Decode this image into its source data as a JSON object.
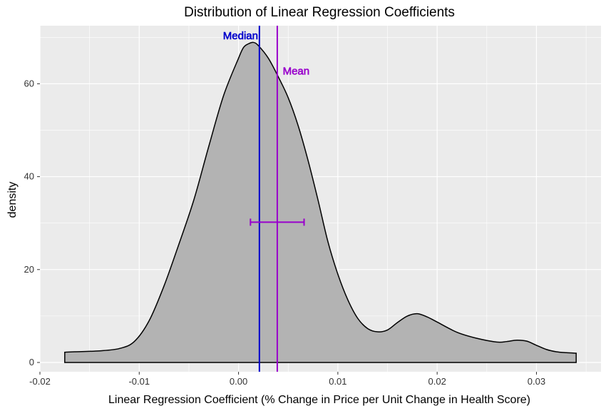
{
  "chart_data": {
    "type": "area",
    "title": "Distribution of Linear Regression Coefficients",
    "xlabel": "Linear Regression Coefficient (% Change in Price per Unit Change in Health Score)",
    "ylabel": "density",
    "xlim": [
      -0.02,
      0.0365
    ],
    "ylim": [
      -2,
      72.5
    ],
    "x_ticks": [
      -0.02,
      -0.01,
      0.0,
      0.01,
      0.02,
      0.03
    ],
    "x_tick_labels": [
      "-0.02",
      "-0.01",
      "0.00",
      "0.01",
      "0.02",
      "0.03"
    ],
    "y_ticks": [
      0,
      20,
      40,
      60
    ],
    "y_tick_labels": [
      "0",
      "20",
      "40",
      "60"
    ],
    "grid": true,
    "density_curve": {
      "x": [
        -0.0175,
        -0.0165,
        -0.014,
        -0.012,
        -0.0105,
        -0.009,
        -0.0075,
        -0.006,
        -0.0045,
        -0.003,
        -0.0015,
        0.0,
        0.0005,
        0.001,
        0.0015,
        0.002,
        0.003,
        0.004,
        0.005,
        0.006,
        0.007,
        0.008,
        0.009,
        0.01,
        0.011,
        0.012,
        0.013,
        0.014,
        0.015,
        0.016,
        0.017,
        0.018,
        0.019,
        0.02,
        0.022,
        0.024,
        0.026,
        0.027,
        0.028,
        0.029,
        0.03,
        0.031,
        0.032,
        0.033,
        0.034
      ],
      "y": [
        2.2,
        2.3,
        2.5,
        3.0,
        4.5,
        9.0,
        16.5,
        25.5,
        35.0,
        46.5,
        57.5,
        65.5,
        67.8,
        68.6,
        68.9,
        68.2,
        65.5,
        61.5,
        57.0,
        51.0,
        43.5,
        35.0,
        26.0,
        19.0,
        13.5,
        9.5,
        7.3,
        6.6,
        7.0,
        8.6,
        10.0,
        10.5,
        9.8,
        8.7,
        6.5,
        5.2,
        4.4,
        4.5,
        4.8,
        4.6,
        3.7,
        2.8,
        2.3,
        2.1,
        2.0
      ],
      "fill": "#b3b3b3",
      "stroke": "#000000"
    },
    "reference_lines": [
      {
        "name": "Median",
        "x": 0.0021,
        "color": "#0000cc"
      },
      {
        "name": "Mean",
        "x": 0.0039,
        "color": "#9900cc"
      }
    ],
    "errorbar": {
      "x_low": 0.0012,
      "x_high": 0.0066,
      "y": 30.2,
      "color": "#9900cc"
    },
    "annotations": [
      {
        "text": "Median",
        "x": 0.0002,
        "y": 69.6,
        "color": "#0000cc"
      },
      {
        "text": "Mean",
        "x": 0.0058,
        "y": 62.0,
        "color": "#9900cc"
      }
    ]
  }
}
